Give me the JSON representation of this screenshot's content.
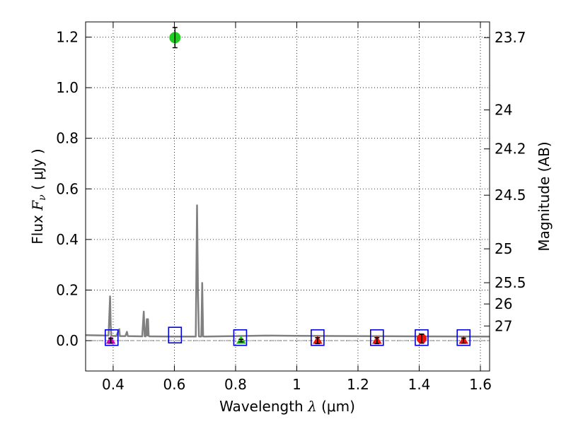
{
  "chart_data": {
    "type": "scatter",
    "xlabel": "Wavelength  λ (μm)",
    "ylabel": "Flux  F_ν  ( μJy )",
    "ylabel_parts": {
      "prefix": "Flux  ",
      "symbol": "F",
      "subscript": "ν",
      "suffix": "  ( μJy )"
    },
    "xlabel_parts": {
      "prefix": "Wavelength  ",
      "symbol": "λ",
      "suffix": " (μm)"
    },
    "y2label": "Magnitude (AB)",
    "xlim": [
      0.31,
      1.63
    ],
    "ylim": [
      -0.12,
      1.26
    ],
    "grid": true,
    "x_ticks": [
      {
        "value": 0.4,
        "label": "0.4"
      },
      {
        "value": 0.6,
        "label": "0.6"
      },
      {
        "value": 0.8,
        "label": "0.8"
      },
      {
        "value": 1.0,
        "label": "1"
      },
      {
        "value": 1.2,
        "label": "1.2"
      },
      {
        "value": 1.4,
        "label": "1.4"
      },
      {
        "value": 1.6,
        "label": "1.6"
      }
    ],
    "y_ticks": [
      {
        "value": 0.0,
        "label": "0.0"
      },
      {
        "value": 0.2,
        "label": "0.2"
      },
      {
        "value": 0.4,
        "label": "0.4"
      },
      {
        "value": 0.6,
        "label": "0.6"
      },
      {
        "value": 0.8,
        "label": "0.8"
      },
      {
        "value": 1.0,
        "label": "1.0"
      },
      {
        "value": 1.2,
        "label": "1.2"
      }
    ],
    "y2_ticks": [
      {
        "flux": 1.198,
        "label": "23.7"
      },
      {
        "flux": 0.912,
        "label": "24"
      },
      {
        "flux": 0.758,
        "label": "24.2"
      },
      {
        "flux": 0.575,
        "label": "24.5"
      },
      {
        "flux": 0.363,
        "label": "25"
      },
      {
        "flux": 0.229,
        "label": "25.5"
      },
      {
        "flux": 0.145,
        "label": "26"
      },
      {
        "flux": 0.058,
        "label": "27"
      }
    ],
    "model_spectrum": {
      "name": "model SED",
      "color": "#808080",
      "x": [
        0.31,
        0.385,
        0.39,
        0.392,
        0.394,
        0.397,
        0.41,
        0.418,
        0.42,
        0.422,
        0.44,
        0.445,
        0.448,
        0.495,
        0.5,
        0.503,
        0.506,
        0.51,
        0.512,
        0.514,
        0.516,
        0.518,
        0.52,
        0.6,
        0.67,
        0.674,
        0.677,
        0.68,
        0.684,
        0.688,
        0.691,
        0.694,
        0.697,
        0.8,
        0.9,
        1.0,
        1.2,
        1.4,
        1.63
      ],
      "y": [
        0.022,
        0.02,
        0.175,
        0.06,
        0.02,
        0.019,
        0.018,
        0.04,
        0.045,
        0.018,
        0.018,
        0.035,
        0.018,
        0.017,
        0.115,
        0.017,
        0.017,
        0.085,
        0.02,
        0.085,
        0.02,
        0.017,
        0.017,
        0.016,
        0.016,
        0.535,
        0.2,
        0.017,
        0.016,
        0.016,
        0.228,
        0.017,
        0.016,
        0.018,
        0.02,
        0.019,
        0.018,
        0.017,
        0.016
      ]
    },
    "zero_line": {
      "value": 0.0,
      "color": "#808080"
    },
    "model_boxes": {
      "color": "#0000dd",
      "x": [
        0.395,
        0.602,
        0.815,
        1.068,
        1.262,
        1.408,
        1.545
      ],
      "y": [
        0.012,
        0.022,
        0.012,
        0.012,
        0.012,
        0.012,
        0.012
      ]
    },
    "measurements": [
      {
        "x": 0.392,
        "y": 0.0,
        "err": 0.01,
        "color": "#cc00cc",
        "marker": "triangle"
      },
      {
        "x": 0.602,
        "y": 1.198,
        "err": 0.04,
        "color": "#22cc22",
        "marker": "circle"
      },
      {
        "x": 0.818,
        "y": 0.0,
        "err": 0.005,
        "color": "#22cc22",
        "marker": "triangle"
      },
      {
        "x": 1.068,
        "y": 0.0,
        "err": 0.012,
        "color": "#ee1111",
        "marker": "triangle"
      },
      {
        "x": 1.262,
        "y": 0.0,
        "err": 0.012,
        "color": "#ee1111",
        "marker": "triangle"
      },
      {
        "x": 1.408,
        "y": 0.008,
        "err": 0.018,
        "color": "#ee1111",
        "marker": "circle"
      },
      {
        "x": 1.545,
        "y": 0.0,
        "err": 0.01,
        "color": "#ee1111",
        "marker": "triangle"
      }
    ]
  }
}
